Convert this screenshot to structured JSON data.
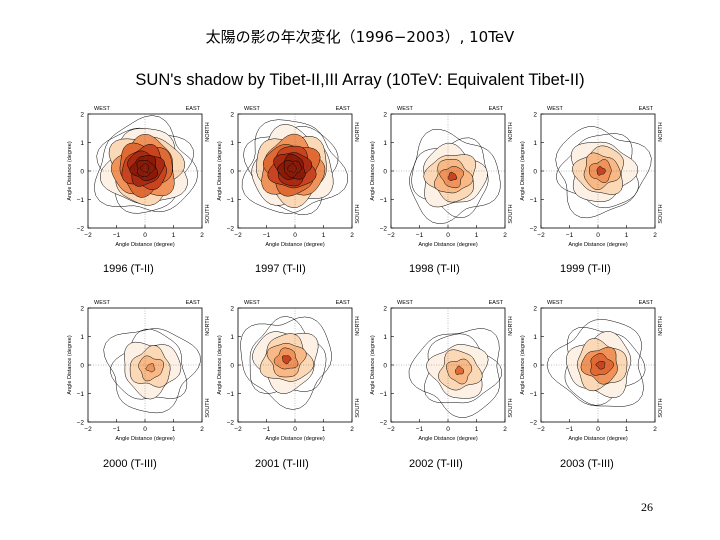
{
  "page": {
    "title": "太陽の影の年次変化（1996−2003）, 10TeV",
    "figure_title": "SUN's shadow  by Tibet-II,III Array (10TeV: Equivalent Tibet-II)",
    "page_number": "26"
  },
  "labels": {
    "west": "WEST",
    "east": "EAST",
    "north": "NORTH",
    "south": "SOUTH",
    "xlabel": "Angle Distance (degree)",
    "ylabel": "Angle Distance (degree)",
    "xticks": [
      "−2",
      "−1",
      "0",
      "1",
      "2"
    ],
    "yticks": [
      "2",
      "1",
      "0",
      "−1",
      "−2"
    ]
  },
  "panels": [
    {
      "caption": "1996 (T-II)",
      "strength": 1.0,
      "cx": 0.0,
      "cy": 0.1
    },
    {
      "caption": "1997 (T-II)",
      "strength": 1.0,
      "cx": -0.1,
      "cy": 0.1
    },
    {
      "caption": "1998 (T-II)",
      "strength": 0.45,
      "cx": 0.15,
      "cy": -0.2
    },
    {
      "caption": "1999 (T-II)",
      "strength": 0.45,
      "cx": 0.1,
      "cy": 0.0
    },
    {
      "caption": "2000 (T-III)",
      "strength": 0.3,
      "cx": 0.2,
      "cy": -0.1
    },
    {
      "caption": "2001 (T-III)",
      "strength": 0.45,
      "cx": -0.3,
      "cy": 0.2
    },
    {
      "caption": "2002 (T-III)",
      "strength": 0.35,
      "cx": 0.4,
      "cy": -0.2
    },
    {
      "caption": "2003 (T-III)",
      "strength": 0.55,
      "cx": 0.1,
      "cy": 0.0
    }
  ],
  "colors": {
    "contour_levels": [
      "#fdf0e4",
      "#fbd8b6",
      "#f8b986",
      "#f0935a",
      "#e06a34",
      "#c84420",
      "#a82a12",
      "#8a1a08"
    ]
  }
}
